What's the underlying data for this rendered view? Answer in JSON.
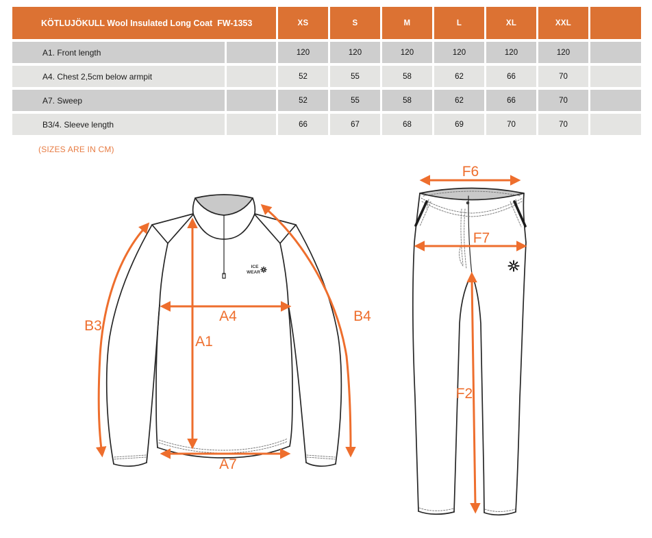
{
  "colors": {
    "table_header_orange": "#DC7233",
    "arrow_orange": "#EE6E2D",
    "note_orange": "#E77B42",
    "row_dark_gray": "#CECECE",
    "row_light_gray": "#E4E4E2",
    "drawing_line": "#262626",
    "garment_interior_gray": "#C9C9C9"
  },
  "size_table": {
    "title": "KÖTLUJÖKULL Wool Insulated Long Coat  FW-1353",
    "columns": [
      "XS",
      "S",
      "M",
      "L",
      "XL",
      "XXL"
    ],
    "rows": [
      {
        "label": "A1. Front length",
        "values": [
          "120",
          "120",
          "120",
          "120",
          "120",
          "120"
        ]
      },
      {
        "label": "A4. Chest 2,5cm below armpit",
        "values": [
          "52",
          "55",
          "58",
          "62",
          "66",
          "70"
        ]
      },
      {
        "label": "A7. Sweep",
        "values": [
          "52",
          "55",
          "58",
          "62",
          "66",
          "70"
        ]
      },
      {
        "label": "B3/4. Sleeve length",
        "values": [
          "66",
          "67",
          "68",
          "69",
          "70",
          "70"
        ]
      }
    ]
  },
  "note": "(SIZES ARE IN CM)",
  "diagram": {
    "sweater_labels": {
      "a1": "A1",
      "a4": "A4",
      "a7": "A7",
      "b3": "B3",
      "b4": "B4"
    },
    "pants_labels": {
      "f2": "F2",
      "f6": "F6",
      "f7": "F7"
    },
    "logo": {
      "line1": "ICE",
      "line2": "WEAR"
    }
  }
}
